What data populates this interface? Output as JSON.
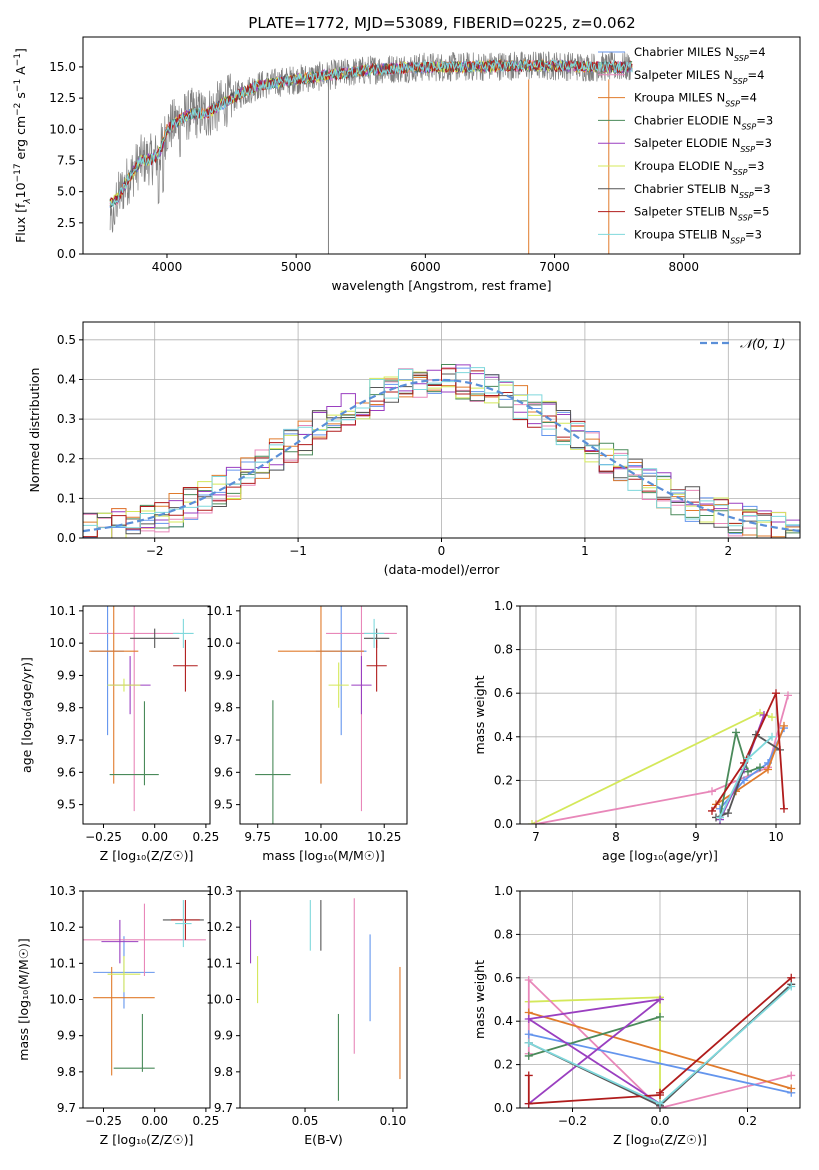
{
  "title": "PLATE=1772, MJD=53089, FIBERID=0225, z=0.062",
  "colors": {
    "chabrier_miles": "#6495ed",
    "salpeter_miles": "#e887b9",
    "kroupa_miles": "#e07b2c",
    "chabrier_elodie": "#4a8a5a",
    "salpeter_elodie": "#9a3fc0",
    "kroupa_elodie": "#d4e85a",
    "chabrier_stelib": "#555555",
    "salpeter_stelib": "#b01c1c",
    "kroupa_stelib": "#7fd8dc",
    "gaussian": "#5a8fd8"
  },
  "chart_data": [
    {
      "id": "spectrum",
      "type": "line",
      "xlabel": "wavelength [Angstrom, rest frame]",
      "ylabel_parts": [
        "Flux [f",
        "λ",
        "10",
        "−17",
        " erg cm",
        "−2",
        " s",
        "−1",
        " A",
        "−1",
        "]"
      ],
      "xlim": [
        3350,
        8900
      ],
      "ylim": [
        0,
        17.4
      ],
      "xticks": [
        4000,
        5000,
        6000,
        7000,
        8000
      ],
      "yticks": [
        "0.0",
        "2.5",
        "5.0",
        "7.5",
        "10.0",
        "12.5",
        "15.0"
      ],
      "ytick_values": [
        0,
        2.5,
        5,
        7.5,
        10,
        12.5,
        15
      ],
      "continuum_x": [
        3560,
        3620,
        3700,
        3800,
        3900,
        3950,
        4000,
        4100,
        4200,
        4300,
        4500,
        4700,
        5000,
        5300,
        5600,
        6000,
        6300,
        6600,
        7000,
        7300,
        7600
      ],
      "continuum_y": [
        4.0,
        4.5,
        6.0,
        7.5,
        7.6,
        8.3,
        10.0,
        10.8,
        11.3,
        11.2,
        12.5,
        13.5,
        14.0,
        14.4,
        14.8,
        15.0,
        15.0,
        15.1,
        15.1,
        15.0,
        15.0
      ],
      "legend": [
        {
          "label": "Chabrier MILES",
          "n": "4",
          "color": "#6495ed"
        },
        {
          "label": "Salpeter MILES",
          "n": "4",
          "color": "#e887b9"
        },
        {
          "label": "Kroupa MILES",
          "n": "4",
          "color": "#e07b2c"
        },
        {
          "label": "Chabrier ELODIE",
          "n": "3",
          "color": "#4a8a5a"
        },
        {
          "label": "Salpeter ELODIE",
          "n": "3",
          "color": "#9a3fc0"
        },
        {
          "label": "Kroupa ELODIE",
          "n": "3",
          "color": "#d4e85a"
        },
        {
          "label": "Chabrier STELIB",
          "n": "3",
          "color": "#555555"
        },
        {
          "label": "Salpeter STELIB",
          "n": "5",
          "color": "#b01c1c"
        },
        {
          "label": "Kroupa STELIB",
          "n": "3",
          "color": "#7fd8dc"
        }
      ],
      "legend_n_prefix": "N",
      "legend_n_sub": "SSP"
    },
    {
      "id": "residuals",
      "type": "histogram",
      "xlabel": "(data-model)/error",
      "ylabel": "Normed distribution",
      "xlim": [
        -2.5,
        2.5
      ],
      "ylim": [
        0,
        0.545
      ],
      "xticks": [
        "−2",
        "−1",
        "0",
        "1",
        "2"
      ],
      "xtick_values": [
        -2,
        -1,
        0,
        1,
        2
      ],
      "yticks": [
        "0.0",
        "0.1",
        "0.2",
        "0.3",
        "0.4",
        "0.5"
      ],
      "ytick_values": [
        0,
        0.1,
        0.2,
        0.3,
        0.4,
        0.5
      ],
      "bin_width": 0.1,
      "gaussian_label": "𝒩(0, 1)",
      "legend_position": "top-right"
    },
    {
      "id": "age_vs_Z",
      "type": "errorbar",
      "xlabel": "Z [log₁₀(Z/Z☉)]",
      "ylabel": "age  [log₁₀(age/yr)]",
      "xlim": [
        -0.35,
        0.27
      ],
      "ylim": [
        9.44,
        10.115
      ],
      "xticks": [
        "−0.25",
        "0.00",
        "0.25"
      ],
      "xtick_values": [
        -0.25,
        0,
        0.25
      ],
      "yticks": [
        "9.5",
        "9.6",
        "9.7",
        "9.8",
        "9.9",
        "10.0",
        "10.1"
      ],
      "ytick_values": [
        9.5,
        9.6,
        9.7,
        9.8,
        9.9,
        10.0,
        10.1
      ],
      "points": [
        {
          "x": -0.23,
          "xerr": 0.08,
          "y": 9.975,
          "yerr": 0.26,
          "color": "#6495ed"
        },
        {
          "x": -0.1,
          "xerr": 0.22,
          "y": 10.03,
          "yerr": 0.55,
          "color": "#e887b9"
        },
        {
          "x": -0.2,
          "xerr": 0.12,
          "y": 9.975,
          "yerr": 0.41,
          "color": "#e07b2c"
        },
        {
          "x": -0.1,
          "xerr": 0.12,
          "y": 9.593,
          "yerr": 0.0,
          "color": "#4a8a5a"
        },
        {
          "x": -0.05,
          "xerr": 0.0,
          "y": 9.69,
          "yerr": 0.13,
          "color": "#4a8a5a"
        },
        {
          "x": -0.12,
          "xerr": 0.1,
          "y": 9.87,
          "yerr": 0.09,
          "color": "#9a3fc0"
        },
        {
          "x": -0.15,
          "xerr": 0.08,
          "y": 9.87,
          "yerr": 0.02,
          "color": "#d4e85a"
        },
        {
          "x": 0.0,
          "xerr": 0.12,
          "y": 10.015,
          "yerr": 0.03,
          "color": "#555555"
        },
        {
          "x": 0.15,
          "xerr": 0.06,
          "y": 9.93,
          "yerr": 0.08,
          "color": "#b01c1c"
        },
        {
          "x": 0.14,
          "xerr": 0.05,
          "y": 10.03,
          "yerr": 0.045,
          "color": "#7fd8dc"
        }
      ]
    },
    {
      "id": "age_vs_mass",
      "type": "errorbar",
      "xlabel": "mass [log₁₀(M/M☉)]",
      "ylabel": "",
      "xlim": [
        9.68,
        10.34
      ],
      "ylim": [
        9.44,
        10.115
      ],
      "xticks": [
        "9.75",
        "10.00",
        "10.25"
      ],
      "xtick_values": [
        9.75,
        10.0,
        10.25
      ],
      "yticks": [
        "9.5",
        "9.6",
        "9.7",
        "9.8",
        "9.9",
        "10.0",
        "10.1"
      ],
      "ytick_values": [
        9.5,
        9.6,
        9.7,
        9.8,
        9.9,
        10.0,
        10.1
      ],
      "points": [
        {
          "x": 10.08,
          "xerr": 0.1,
          "y": 9.975,
          "yerr": 0.26,
          "color": "#6495ed"
        },
        {
          "x": 10.16,
          "xerr": 0.14,
          "y": 10.03,
          "yerr": 0.55,
          "color": "#e887b9"
        },
        {
          "x": 10.0,
          "xerr": 0.17,
          "y": 9.975,
          "yerr": 0.41,
          "color": "#e07b2c"
        },
        {
          "x": 9.81,
          "xerr": 0.07,
          "y": 9.593,
          "yerr": 0.23,
          "color": "#4a8a5a"
        },
        {
          "x": 10.16,
          "xerr": 0.04,
          "y": 9.87,
          "yerr": 0.09,
          "color": "#9a3fc0"
        },
        {
          "x": 10.07,
          "xerr": 0.04,
          "y": 9.87,
          "yerr": 0.07,
          "color": "#d4e85a"
        },
        {
          "x": 10.22,
          "xerr": 0.05,
          "y": 10.015,
          "yerr": 0.03,
          "color": "#555555"
        },
        {
          "x": 10.22,
          "xerr": 0.04,
          "y": 9.93,
          "yerr": 0.08,
          "color": "#b01c1c"
        },
        {
          "x": 10.21,
          "xerr": 0.04,
          "y": 10.03,
          "yerr": 0.045,
          "color": "#7fd8dc"
        }
      ]
    },
    {
      "id": "weight_vs_age",
      "type": "line",
      "xlabel": "age  [log₁₀(age/yr)]",
      "ylabel": "mass weight",
      "xlim": [
        6.8,
        10.3
      ],
      "ylim": [
        0,
        1.0
      ],
      "xticks": [
        "7",
        "8",
        "9",
        "10"
      ],
      "xtick_values": [
        7,
        8,
        9,
        10
      ],
      "yticks": [
        "0.0",
        "0.2",
        "0.4",
        "0.6",
        "0.8",
        "1.0"
      ],
      "ytick_values": [
        0,
        0.2,
        0.4,
        0.6,
        0.8,
        1.0
      ],
      "grid": true,
      "series": [
        {
          "color": "#d4e85a",
          "x": [
            6.95,
            9.8,
            9.95
          ],
          "y": [
            0.0,
            0.51,
            0.49
          ]
        },
        {
          "color": "#e887b9",
          "x": [
            7.0,
            9.2,
            9.9,
            10.15
          ],
          "y": [
            0.0,
            0.15,
            0.26,
            0.59
          ]
        },
        {
          "color": "#6495ed",
          "x": [
            9.3,
            9.6,
            9.9,
            10.1
          ],
          "y": [
            0.07,
            0.2,
            0.28,
            0.44
          ]
        },
        {
          "color": "#e07b2c",
          "x": [
            9.25,
            9.5,
            9.9,
            10.1
          ],
          "y": [
            0.09,
            0.15,
            0.25,
            0.45
          ]
        },
        {
          "color": "#4a8a5a",
          "x": [
            9.3,
            9.5,
            9.65,
            9.8
          ],
          "y": [
            0.03,
            0.42,
            0.24,
            0.26
          ]
        },
        {
          "color": "#9a3fc0",
          "x": [
            9.3,
            9.6,
            9.85
          ],
          "y": [
            0.02,
            0.25,
            0.5
          ]
        },
        {
          "color": "#555555",
          "x": [
            9.25,
            9.4,
            9.75,
            10.05
          ],
          "y": [
            0.03,
            0.05,
            0.41,
            0.34
          ]
        },
        {
          "color": "#b01c1c",
          "x": [
            9.2,
            9.6,
            10.0,
            10.1
          ],
          "y": [
            0.06,
            0.28,
            0.6,
            0.07
          ]
        },
        {
          "color": "#7fd8dc",
          "x": [
            9.3,
            9.65,
            9.95
          ],
          "y": [
            0.03,
            0.3,
            0.4
          ]
        }
      ]
    },
    {
      "id": "mass_vs_Z",
      "type": "errorbar",
      "xlabel": "Z [log₁₀(Z/Z☉)]",
      "ylabel": "mass [log₁₀(M/M☉)]",
      "xlim": [
        -0.35,
        0.27
      ],
      "ylim": [
        9.7,
        10.3
      ],
      "xticks": [
        "−0.25",
        "0.00",
        "0.25"
      ],
      "xtick_values": [
        -0.25,
        0,
        0.25
      ],
      "yticks": [
        "9.7",
        "9.8",
        "9.9",
        "10.0",
        "10.1",
        "10.2",
        "10.3"
      ],
      "ytick_values": [
        9.7,
        9.8,
        9.9,
        10.0,
        10.1,
        10.2,
        10.3
      ],
      "points": [
        {
          "x": -0.15,
          "xerr": 0.15,
          "y": 10.075,
          "yerr": 0.1,
          "color": "#6495ed"
        },
        {
          "x": -0.05,
          "xerr": 0.3,
          "y": 10.165,
          "yerr": 0.1,
          "color": "#e887b9"
        },
        {
          "x": -0.15,
          "xerr": 0.15,
          "y": 10.005,
          "yerr": 0.0,
          "color": "#e07b2c"
        },
        {
          "x": -0.21,
          "xerr": 0.0,
          "y": 9.94,
          "yerr": 0.15,
          "color": "#e07b2c"
        },
        {
          "x": -0.1,
          "xerr": 0.1,
          "y": 9.81,
          "yerr": 0.0,
          "color": "#4a8a5a"
        },
        {
          "x": -0.06,
          "xerr": 0.0,
          "y": 9.88,
          "yerr": 0.08,
          "color": "#4a8a5a"
        },
        {
          "x": -0.17,
          "xerr": 0.09,
          "y": 10.16,
          "yerr": 0.06,
          "color": "#9a3fc0"
        },
        {
          "x": -0.15,
          "xerr": 0.08,
          "y": 10.07,
          "yerr": 0.05,
          "color": "#d4e85a"
        },
        {
          "x": 0.14,
          "xerr": 0.1,
          "y": 10.22,
          "yerr": 0.0,
          "color": "#555555"
        },
        {
          "x": 0.15,
          "xerr": 0.07,
          "y": 10.22,
          "yerr": 0.055,
          "color": "#b01c1c"
        },
        {
          "x": 0.14,
          "xerr": 0.04,
          "y": 10.21,
          "yerr": 0.065,
          "color": "#7fd8dc"
        }
      ]
    },
    {
      "id": "mass_vs_EBV",
      "type": "errorbar",
      "xlabel": "E(B-V)",
      "ylabel": "",
      "xlim": [
        0.013,
        0.108
      ],
      "ylim": [
        9.7,
        10.3
      ],
      "xticks": [
        "0.05",
        "0.10"
      ],
      "xtick_values": [
        0.05,
        0.1
      ],
      "yticks": [
        "9.7",
        "9.8",
        "9.9",
        "10.0",
        "10.1",
        "10.2",
        "10.3"
      ],
      "ytick_values": [
        9.7,
        9.8,
        9.9,
        10.0,
        10.1,
        10.2,
        10.3
      ],
      "points": [
        {
          "x": 0.087,
          "xerr": 0.0,
          "y": 10.06,
          "yerr": 0.12,
          "color": "#6495ed"
        },
        {
          "x": 0.078,
          "xerr": 0.0,
          "y": 10.065,
          "yerr": 0.215,
          "color": "#e887b9"
        },
        {
          "x": 0.104,
          "xerr": 0.0,
          "y": 9.935,
          "yerr": 0.155,
          "color": "#e07b2c"
        },
        {
          "x": 0.069,
          "xerr": 0.0,
          "y": 9.84,
          "yerr": 0.12,
          "color": "#4a8a5a"
        },
        {
          "x": 0.019,
          "xerr": 0.0,
          "y": 10.16,
          "yerr": 0.06,
          "color": "#9a3fc0"
        },
        {
          "x": 0.023,
          "xerr": 0.0,
          "y": 10.055,
          "yerr": 0.065,
          "color": "#d4e85a"
        },
        {
          "x": 0.059,
          "xerr": 0.0,
          "y": 10.205,
          "yerr": 0.07,
          "color": "#555555"
        },
        {
          "x": 0.053,
          "xerr": 0.0,
          "y": 10.205,
          "yerr": 0.07,
          "color": "#7fd8dc"
        }
      ]
    },
    {
      "id": "weight_vs_Z",
      "type": "line",
      "xlabel": "Z [log₁₀(Z/Z☉)]",
      "ylabel": "mass weight",
      "xlim": [
        -0.32,
        0.32
      ],
      "ylim": [
        0,
        1.0
      ],
      "xticks": [
        "−0.2",
        "0.0",
        "0.2"
      ],
      "xtick_values": [
        -0.2,
        0,
        0.2
      ],
      "yticks": [
        "0.0",
        "0.2",
        "0.4",
        "0.6",
        "0.8",
        "1.0"
      ],
      "ytick_values": [
        0,
        0.2,
        0.4,
        0.6,
        0.8,
        1.0
      ],
      "grid": true,
      "series": [
        {
          "color": "#d4e85a",
          "x": [
            -0.3,
            0.0,
            0.0
          ],
          "y": [
            0.49,
            0.51,
            0.0
          ]
        },
        {
          "color": "#e887b9",
          "x": [
            -0.3,
            -0.3,
            0.0,
            0.3
          ],
          "y": [
            0.25,
            0.59,
            0.0,
            0.15
          ]
        },
        {
          "color": "#6495ed",
          "x": [
            -0.3,
            0.3
          ],
          "y": [
            0.34,
            0.07
          ]
        },
        {
          "color": "#e07b2c",
          "x": [
            -0.3,
            0.3
          ],
          "y": [
            0.44,
            0.09
          ]
        },
        {
          "color": "#4a8a5a",
          "x": [
            -0.3,
            0.0
          ],
          "y": [
            0.24,
            0.42
          ]
        },
        {
          "color": "#9a3fc0",
          "x": [
            -0.3,
            0.0,
            -0.3,
            0.0
          ],
          "y": [
            0.02,
            0.5,
            0.41,
            0.02
          ]
        },
        {
          "color": "#555555",
          "x": [
            -0.3,
            0.0,
            0.3
          ],
          "y": [
            0.3,
            0.01,
            0.57
          ]
        },
        {
          "color": "#b01c1c",
          "x": [
            -0.3,
            -0.3,
            0.0,
            0.0,
            0.3
          ],
          "y": [
            0.15,
            0.02,
            0.06,
            0.07,
            0.6
          ]
        },
        {
          "color": "#7fd8dc",
          "x": [
            -0.3,
            0.0,
            0.3
          ],
          "y": [
            0.3,
            0.02,
            0.56
          ]
        }
      ]
    }
  ]
}
